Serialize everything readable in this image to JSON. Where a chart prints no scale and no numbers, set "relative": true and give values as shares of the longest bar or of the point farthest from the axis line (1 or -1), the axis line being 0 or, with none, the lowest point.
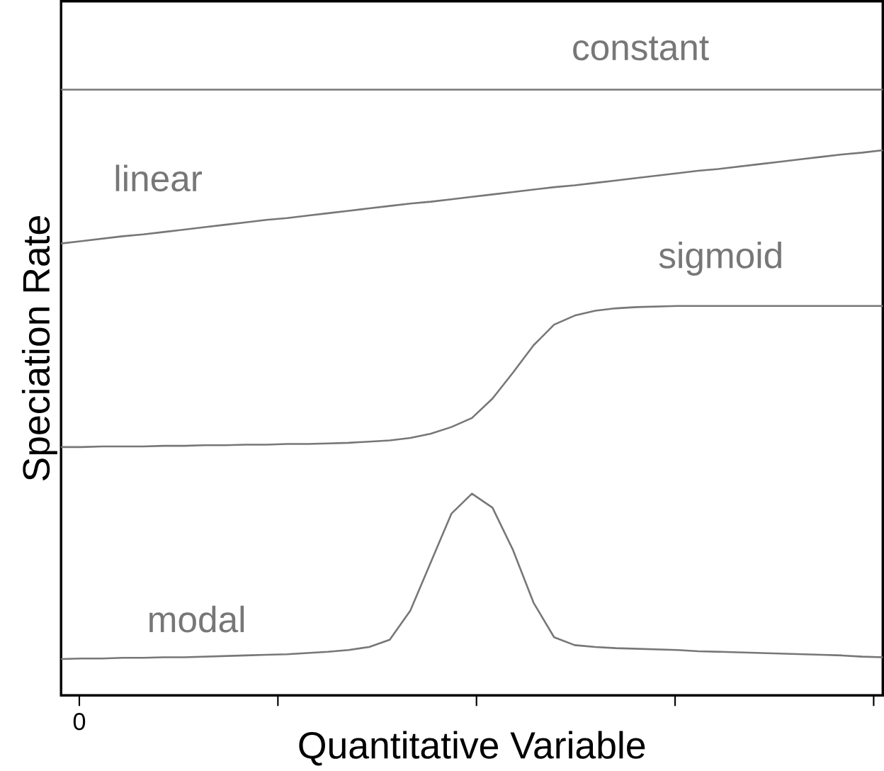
{
  "chart_data": {
    "type": "line",
    "relative": true,
    "xlabel": "Quantitative Variable",
    "ylabel": "Speciation Rate",
    "line_style": "solid",
    "annotations": [
      "0"
    ],
    "categories": [
      null,
      null,
      null,
      null,
      null,
      null,
      null,
      null,
      null,
      null,
      null,
      null,
      null,
      null,
      null,
      null,
      null,
      null,
      null,
      null,
      null,
      null,
      null,
      null,
      null,
      null,
      null,
      null,
      null,
      null,
      null,
      null,
      null,
      null,
      null,
      null,
      null,
      null,
      null,
      null,
      null
    ],
    "series": [
      {
        "name": "constant",
        "color": "#777777",
        "values": [
          1,
          1,
          1,
          1,
          1,
          1,
          1,
          1,
          1,
          1,
          1,
          1,
          1,
          1,
          1,
          1,
          1,
          1,
          1,
          1,
          1,
          1,
          1,
          1,
          1,
          1,
          1,
          1,
          1,
          1,
          1,
          1,
          1,
          1,
          1,
          1,
          1,
          1,
          1,
          1,
          1
        ]
      },
      {
        "name": "linear",
        "color": "#777777",
        "values": [
          0.746,
          0.75,
          0.754,
          0.758,
          0.761,
          0.765,
          0.769,
          0.773,
          0.777,
          0.781,
          0.785,
          0.788,
          0.792,
          0.796,
          0.8,
          0.804,
          0.808,
          0.812,
          0.815,
          0.819,
          0.823,
          0.827,
          0.831,
          0.835,
          0.839,
          0.842,
          0.846,
          0.85,
          0.854,
          0.858,
          0.862,
          0.866,
          0.869,
          0.873,
          0.877,
          0.881,
          0.885,
          0.889,
          0.893,
          0.896,
          0.9
        ]
      },
      {
        "name": "sigmoid",
        "color": "#777777",
        "values": [
          0.41,
          0.41,
          0.411,
          0.411,
          0.411,
          0.412,
          0.412,
          0.413,
          0.413,
          0.414,
          0.414,
          0.415,
          0.415,
          0.416,
          0.417,
          0.419,
          0.421,
          0.425,
          0.432,
          0.443,
          0.458,
          0.49,
          0.533,
          0.578,
          0.612,
          0.627,
          0.635,
          0.639,
          0.641,
          0.642,
          0.643,
          0.643,
          0.643,
          0.643,
          0.643,
          0.643,
          0.643,
          0.643,
          0.643,
          0.643,
          0.643
        ]
      },
      {
        "name": "modal",
        "color": "#777777",
        "values": [
          0.06,
          0.061,
          0.061,
          0.062,
          0.062,
          0.063,
          0.063,
          0.064,
          0.065,
          0.066,
          0.067,
          0.068,
          0.07,
          0.072,
          0.075,
          0.08,
          0.092,
          0.14,
          0.22,
          0.3,
          0.333,
          0.31,
          0.24,
          0.153,
          0.096,
          0.083,
          0.08,
          0.078,
          0.077,
          0.076,
          0.075,
          0.073,
          0.072,
          0.071,
          0.07,
          0.069,
          0.068,
          0.067,
          0.066,
          0.064,
          0.063
        ]
      }
    ]
  }
}
